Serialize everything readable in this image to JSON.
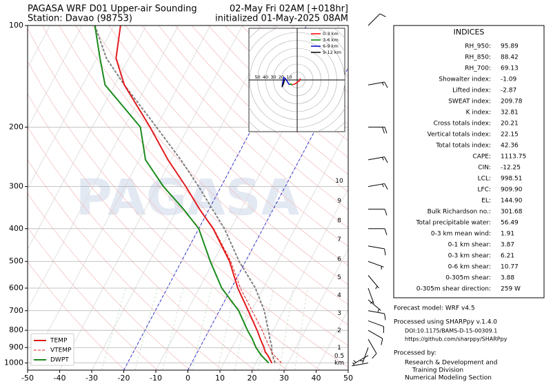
{
  "chart_data": {
    "type": "skewt",
    "title": "PAGASA WRF D01 Upper-air Sounding",
    "subtitle": "Station: Davao (98753)",
    "valid_time": "02-May Fri 02AM [+018hr]",
    "init_time": "initialized 01-May-2025 08AM",
    "watermark": "PAGASA",
    "pressure": [
      1000,
      950,
      925,
      900,
      850,
      800,
      700,
      600,
      500,
      400,
      350,
      300,
      250,
      200,
      150,
      125,
      100
    ],
    "series": [
      {
        "name": "TEMP",
        "color": "#e31a1c",
        "dashed": false,
        "values": [
          25,
          22.5,
          21,
          20,
          17.5,
          15,
          9,
          2,
          -5,
          -15.5,
          -23,
          -31,
          -41,
          -52,
          -67,
          -74,
          -78
        ]
      },
      {
        "name": "VTEMP",
        "color": "#e31a1c",
        "dashed": true,
        "values": [
          28,
          24.5,
          23,
          21.8,
          19.2,
          16.6,
          10.2,
          2.8,
          -4.6,
          -15.3,
          -23,
          -31,
          -41,
          -52,
          -67,
          -74,
          -78
        ]
      },
      {
        "name": "DWPT",
        "color": "#1a8a1a",
        "dashed": false,
        "values": [
          24,
          20.5,
          19,
          17.5,
          15,
          12,
          6,
          -3,
          -11,
          -20,
          -28,
          -38,
          -48,
          -55,
          -73,
          -79,
          -86
        ]
      }
    ],
    "parcel": {
      "color": "#808080",
      "values": [
        26,
        24,
        23,
        22.5,
        20.5,
        18.5,
        14,
        7.5,
        -2,
        -12,
        -19,
        -27,
        -37,
        -50,
        -67,
        -77,
        -86
      ]
    },
    "highlight_isotherms": {
      "color": "#0000cc",
      "values": [
        -20,
        0
      ]
    },
    "xlim": [
      -50,
      50
    ],
    "xticks": [
      -50,
      -40,
      -30,
      -20,
      -10,
      0,
      10,
      20,
      30,
      40,
      50
    ],
    "ylim": [
      1050,
      100
    ],
    "yticks": [
      1000,
      900,
      800,
      700,
      600,
      500,
      400,
      300,
      200,
      100
    ],
    "log_y": true,
    "grid": true,
    "legend": "lower left",
    "heights": {
      "labels": [
        "10",
        "9",
        "8",
        "7",
        "6",
        "5",
        "4",
        "3",
        "2",
        "1",
        "0.5"
      ],
      "pressure": [
        289,
        331,
        378,
        431,
        492,
        558,
        631,
        713,
        802,
        902,
        953
      ],
      "unit": "km"
    },
    "winds": {
      "pressure": [
        1000,
        950,
        900,
        850,
        800,
        750,
        700,
        650,
        600,
        550,
        500,
        450,
        400,
        350,
        300,
        250,
        200,
        150,
        100
      ],
      "speed": [
        5,
        5,
        5,
        10,
        10,
        10,
        10,
        5,
        5,
        5,
        5,
        10,
        10,
        10,
        15,
        15,
        20,
        15,
        10
      ],
      "direction": [
        260,
        240,
        200,
        150,
        120,
        110,
        100,
        130,
        160,
        140,
        110,
        100,
        90,
        90,
        80,
        80,
        90,
        80,
        45
      ]
    },
    "hodograph": {
      "rings": [
        10,
        20,
        30,
        40,
        50
      ],
      "series": [
        {
          "name": "0-3 km",
          "color": "#ff0000",
          "u": [
            -6,
            -3,
            0,
            3,
            4
          ],
          "v": [
            -6,
            -5,
            -3,
            -1,
            2
          ]
        },
        {
          "name": "3-6 km",
          "color": "#008000",
          "u": [
            -6,
            -8,
            -10
          ],
          "v": [
            -6,
            -5,
            -6
          ]
        },
        {
          "name": "6-9 km",
          "color": "#0000cc",
          "u": [
            -10,
            -15,
            -17,
            -19
          ],
          "v": [
            -6,
            2,
            3,
            -9
          ]
        },
        {
          "name": "9-12 km",
          "color": "#000000",
          "u": [
            -19,
            -17,
            -16
          ],
          "v": [
            -9,
            -4,
            1
          ]
        }
      ]
    }
  },
  "indices": {
    "title": "INDICES",
    "rows": [
      [
        "RH_950:",
        "95.89"
      ],
      [
        "RH_850:",
        "88.42"
      ],
      [
        "RH_700:",
        "69.13"
      ],
      [
        "Showalter index:",
        "-1.09"
      ],
      [
        "Lifted index:",
        "-2.87"
      ],
      [
        "SWEAT index:",
        "209.78"
      ],
      [
        "K index:",
        "32.81"
      ],
      [
        "Cross totals index:",
        "20.21"
      ],
      [
        "Vertical totals index:",
        "22.15"
      ],
      [
        "Total totals index:",
        "42.36"
      ],
      [
        "CAPE:",
        "1113.75"
      ],
      [
        "CIN:",
        "-12.25"
      ],
      [
        "LCL:",
        "998.51"
      ],
      [
        "LFC:",
        "909.90"
      ],
      [
        "EL:",
        "144.90"
      ],
      [
        "Bulk Richardson no.:",
        "301.68"
      ],
      [
        "Total precipitable water:",
        "56.49"
      ],
      [
        "0-3 km mean wind:",
        "1.91"
      ],
      [
        "0-1 km shear:",
        "3.87"
      ],
      [
        "0-3 km shear:",
        "6.21"
      ],
      [
        "0-6 km shear:",
        "10.77"
      ],
      [
        "0-305m shear:",
        "3.88"
      ],
      [
        "0-305m shear direction:",
        "259 W"
      ]
    ]
  },
  "footer": {
    "lines": [
      "Forecast model: WRF v4.5",
      "Processed using SHARPpy v.1.4.0",
      "DOI:10.1175/BAMS-D-15-00309.1",
      "https://github.com/sharppy/SHARPpy",
      "Processed by:",
      "Research & Development and",
      "Training Division",
      "Numerical Modeling Section"
    ]
  }
}
